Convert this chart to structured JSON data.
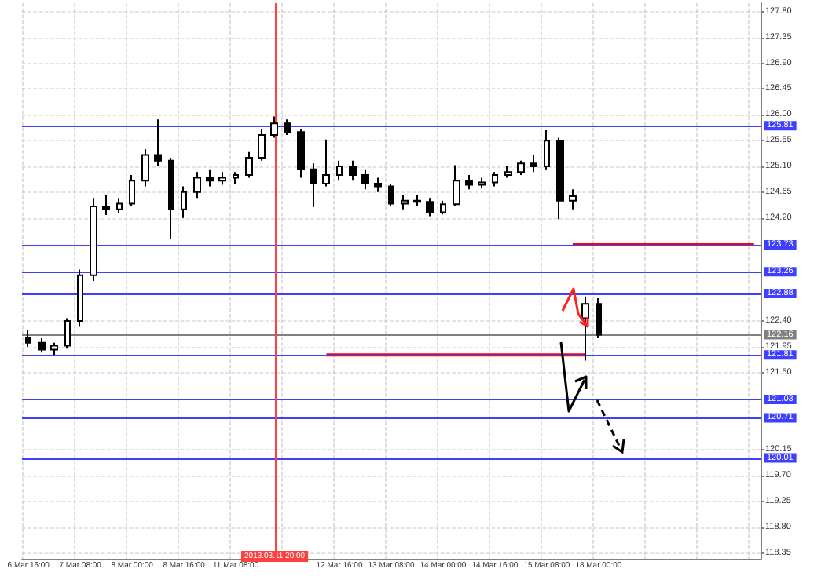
{
  "chart_data": {
    "type": "candlestick",
    "color": "#000000",
    "categories": [
      "6 Mar 16:00",
      null,
      null,
      null,
      "7 Mar 08:00",
      null,
      null,
      null,
      "8 Mar 00:00",
      null,
      null,
      null,
      "8 Mar 16:00",
      null,
      null,
      null,
      "11 Mar 08:00",
      null,
      null,
      "2013.03.11 20:00",
      null,
      null,
      null,
      null,
      "12 Mar 16:00",
      null,
      null,
      null,
      "13 Mar 08:00",
      null,
      null,
      null,
      "14 Mar 00:00",
      null,
      null,
      null,
      "14 Mar 16:00",
      null,
      null,
      null,
      "15 Mar 08:00",
      null,
      null,
      null,
      "18 Mar 00:00",
      null,
      null,
      null,
      null,
      null,
      null,
      null,
      null,
      null,
      null,
      null,
      null
    ],
    "ohlc": [
      [
        122.1,
        122.25,
        121.95,
        122.02
      ],
      [
        122.02,
        122.1,
        121.85,
        121.9
      ],
      [
        121.9,
        122.02,
        121.81,
        121.97
      ],
      [
        121.97,
        122.45,
        121.92,
        122.4
      ],
      [
        122.4,
        123.3,
        122.3,
        123.2
      ],
      [
        123.2,
        124.55,
        123.1,
        124.4
      ],
      [
        124.4,
        124.6,
        124.25,
        124.35
      ],
      [
        124.35,
        124.55,
        124.28,
        124.45
      ],
      [
        124.45,
        124.95,
        124.4,
        124.85
      ],
      [
        124.85,
        125.4,
        124.75,
        125.3
      ],
      [
        125.3,
        125.92,
        125.1,
        125.2
      ],
      [
        125.2,
        125.25,
        123.83,
        124.35
      ],
      [
        124.35,
        124.75,
        124.2,
        124.65
      ],
      [
        124.65,
        125.0,
        124.55,
        124.9
      ],
      [
        124.9,
        125.05,
        124.75,
        124.85
      ],
      [
        124.85,
        125.0,
        124.78,
        124.9
      ],
      [
        124.9,
        125.0,
        124.8,
        124.95
      ],
      [
        124.95,
        125.35,
        124.9,
        125.25
      ],
      [
        125.25,
        125.75,
        125.2,
        125.65
      ],
      [
        125.65,
        125.97,
        125.6,
        125.85
      ],
      [
        125.85,
        125.92,
        125.65,
        125.7
      ],
      [
        125.7,
        125.75,
        124.9,
        125.05
      ],
      [
        125.05,
        125.15,
        124.39,
        124.8
      ],
      [
        124.8,
        125.57,
        124.75,
        124.95
      ],
      [
        124.95,
        125.2,
        124.85,
        125.1
      ],
      [
        125.1,
        125.2,
        124.85,
        124.95
      ],
      [
        124.95,
        125.05,
        124.7,
        124.8
      ],
      [
        124.8,
        124.9,
        124.65,
        124.75
      ],
      [
        124.75,
        124.8,
        124.4,
        124.45
      ],
      [
        124.45,
        124.6,
        124.35,
        124.5
      ],
      [
        124.5,
        124.6,
        124.4,
        124.48
      ],
      [
        124.48,
        124.55,
        124.23,
        124.3
      ],
      [
        124.3,
        124.5,
        124.26,
        124.44
      ],
      [
        124.44,
        125.12,
        124.4,
        124.85
      ],
      [
        124.85,
        124.95,
        124.7,
        124.78
      ],
      [
        124.78,
        124.9,
        124.72,
        124.82
      ],
      [
        124.82,
        125.0,
        124.75,
        124.95
      ],
      [
        124.95,
        125.1,
        124.9,
        125.0
      ],
      [
        125.0,
        125.2,
        124.95,
        125.15
      ],
      [
        125.15,
        125.3,
        125.0,
        125.1
      ],
      [
        125.1,
        125.73,
        125.05,
        125.55
      ],
      [
        125.55,
        125.6,
        124.18,
        124.5
      ],
      [
        124.5,
        124.7,
        124.35,
        124.58
      ],
      [
        122.45,
        122.83,
        121.71,
        122.7
      ],
      [
        122.7,
        122.8,
        122.1,
        122.16
      ],
      null,
      null,
      null,
      null,
      null,
      null,
      null,
      null,
      null,
      null,
      null,
      null
    ],
    "series": [
      {
        "type": "line",
        "color": "#ff0000",
        "values": [
          null,
          null,
          null,
          null,
          null,
          null,
          null,
          null,
          null,
          null,
          null,
          null,
          null,
          null,
          null,
          null,
          null,
          null,
          null,
          null,
          null,
          null,
          null,
          121.81,
          121.81,
          121.81,
          121.81,
          121.81,
          121.81,
          121.81,
          121.81,
          121.81,
          121.81,
          121.81,
          121.81,
          121.81,
          121.81,
          121.81,
          121.81,
          121.81,
          121.81,
          121.81,
          121.81,
          121.81,
          null,
          null,
          null,
          null,
          null,
          null,
          null,
          null,
          null,
          null,
          null,
          null,
          null
        ]
      },
      {
        "type": "line",
        "color": "#ff0000",
        "values": [
          null,
          null,
          null,
          null,
          null,
          null,
          null,
          null,
          null,
          null,
          null,
          null,
          null,
          null,
          null,
          null,
          null,
          null,
          null,
          null,
          null,
          null,
          null,
          null,
          null,
          null,
          null,
          null,
          null,
          null,
          null,
          null,
          null,
          null,
          null,
          null,
          null,
          null,
          null,
          null,
          null,
          null,
          123.73,
          123.73,
          123.73,
          123.73,
          123.73,
          123.73,
          123.73,
          123.73,
          123.73,
          123.73,
          123.73,
          123.73,
          123.73,
          123.73,
          123.73
        ]
      }
    ],
    "ylim": [
      118.25,
      127.95
    ],
    "yticks": [
      {
        "value": 118.35,
        "label": "118.35"
      },
      {
        "value": 118.8,
        "label": "118.80"
      },
      {
        "value": 119.25,
        "label": "119.25"
      },
      {
        "value": 119.7,
        "label": "119.70"
      },
      {
        "value": 120.15,
        "label": "120.15"
      },
      {
        "value": 121.5,
        "label": "121.50"
      },
      {
        "value": 121.95,
        "label": "121.95"
      },
      {
        "value": 122.4,
        "label": "122.40"
      },
      {
        "value": 124.2,
        "label": "124.20"
      },
      {
        "value": 124.65,
        "label": "124.65"
      },
      {
        "value": 125.1,
        "label": "125.10"
      },
      {
        "value": 125.55,
        "label": "125.55"
      },
      {
        "value": 126.0,
        "label": "126.00"
      },
      {
        "value": 126.45,
        "label": "126.45"
      },
      {
        "value": 126.9,
        "label": "126.90"
      },
      {
        "value": 127.35,
        "label": "127.35"
      },
      {
        "value": 127.8,
        "label": "127.80"
      }
    ],
    "grid": true,
    "ref_lines": [
      {
        "axis": "y",
        "value": 125.81,
        "label": "125.81",
        "color": "#3f3fff"
      },
      {
        "axis": "y",
        "value": 123.73,
        "label": "123.73",
        "color": "#3f3fff"
      },
      {
        "axis": "y",
        "value": 123.26,
        "label": "123.26",
        "color": "#3f3fff"
      },
      {
        "axis": "y",
        "value": 122.88,
        "label": "122.88",
        "color": "#3f3fff"
      },
      {
        "axis": "y",
        "value": 122.16,
        "label": "122.16",
        "color": "#808080"
      },
      {
        "axis": "y",
        "value": 121.81,
        "label": "121.81",
        "color": "#3f3fff"
      },
      {
        "axis": "y",
        "value": 121.03,
        "label": "121.03",
        "color": "#3f3fff"
      },
      {
        "axis": "y",
        "value": 120.71,
        "label": "120.71",
        "color": "#3f3fff"
      },
      {
        "axis": "y",
        "value": 120.01,
        "label": "120.01",
        "color": "#3f3fff"
      },
      {
        "axis": "x",
        "value": "2013.03.11 20:00",
        "color": "#ff4040"
      }
    ]
  }
}
